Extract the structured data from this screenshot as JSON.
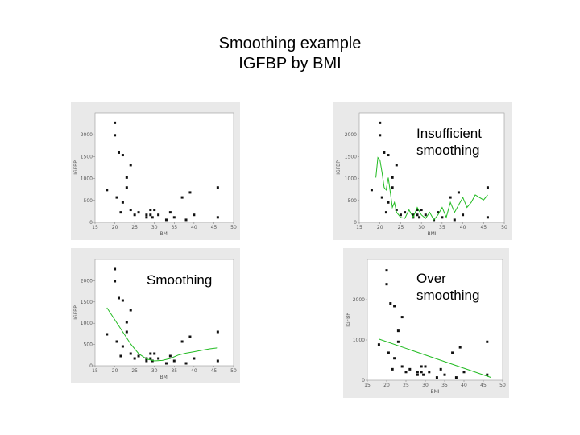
{
  "slide": {
    "title_line1": "Smoothing example",
    "title_line2": "IGFBP by BMI"
  },
  "captions": {
    "insufficient": "Insufficient smoothing",
    "smoothing": "Smoothing",
    "over": "Over smoothing"
  },
  "colors": {
    "points": "#111111",
    "smooth_line": "#22bb22",
    "frame": "#999999",
    "panel_bg": "#e9e9e9"
  },
  "points": {
    "x": [
      18,
      20,
      20,
      20.5,
      21,
      21.5,
      22,
      22,
      23,
      23,
      24,
      24,
      25,
      26,
      28,
      28,
      29,
      29,
      29.5,
      30,
      31,
      33,
      34,
      35,
      37,
      38,
      39,
      40,
      46,
      46
    ],
    "y": [
      650,
      2000,
      1750,
      500,
      1400,
      200,
      1350,
      400,
      700,
      900,
      250,
      1150,
      150,
      200,
      150,
      100,
      250,
      150,
      100,
      250,
      150,
      50,
      200,
      100,
      500,
      50,
      600,
      150,
      700,
      100
    ]
  },
  "chart_data": [
    {
      "type": "scatter",
      "title": "",
      "xlabel": "BMI",
      "ylabel": "IGFBP",
      "xlim": [
        15,
        50
      ],
      "ylim": [
        0,
        2200
      ],
      "x_ticks": [
        "15",
        "20",
        "25",
        "30",
        "35",
        "40",
        "45",
        "50"
      ],
      "y_ticks": [
        "0",
        "500",
        "1000",
        "1500",
        "2000"
      ],
      "series": []
    },
    {
      "type": "scatter",
      "title": "Insufficient smoothing",
      "xlabel": "BMI",
      "ylabel": "IGFBP",
      "xlim": [
        15,
        50
      ],
      "ylim": [
        0,
        5200
      ],
      "x_ticks": [
        "15",
        "20",
        "25",
        "30",
        "35",
        "40",
        "45",
        "50"
      ],
      "y_ticks": [
        "0",
        "500",
        "1000",
        "1500",
        "2000"
      ],
      "series": [
        {
          "x": [
            19,
            19.5,
            20,
            20.5,
            21,
            21.5,
            22,
            22.5,
            23,
            23.5,
            24,
            25,
            26,
            27,
            28,
            29,
            30,
            31,
            32,
            33,
            34,
            35,
            36,
            37,
            38,
            39,
            40,
            41,
            42,
            43,
            44,
            45,
            46
          ],
          "y": [
            900,
            1300,
            1250,
            1000,
            700,
            650,
            900,
            600,
            300,
            400,
            200,
            100,
            80,
            250,
            100,
            300,
            150,
            80,
            200,
            50,
            150,
            300,
            100,
            400,
            200,
            350,
            500,
            300,
            400,
            550,
            500,
            450,
            550
          ]
        }
      ]
    },
    {
      "type": "scatter",
      "title": "Smoothing",
      "xlabel": "BMI",
      "ylabel": "IGFBP",
      "xlim": [
        15,
        50
      ],
      "ylim": [
        0,
        2200
      ],
      "x_ticks": [
        "15",
        "20",
        "25",
        "30",
        "35",
        "40",
        "45",
        "50"
      ],
      "y_ticks": [
        "0",
        "500",
        "1000",
        "1500",
        "2000"
      ],
      "series": [
        {
          "x": [
            18,
            20,
            22,
            24,
            26,
            28,
            30,
            32,
            34,
            36,
            38,
            40,
            42,
            44,
            46
          ],
          "y": [
            1200,
            950,
            700,
            450,
            250,
            140,
            100,
            110,
            150,
            220,
            260,
            290,
            320,
            350,
            370
          ]
        }
      ]
    },
    {
      "type": "scatter",
      "title": "Over smoothing",
      "xlabel": "BMI",
      "ylabel": "IGFBP",
      "xlim": [
        15,
        50
      ],
      "ylim": [
        0,
        2200
      ],
      "x_ticks": [
        "15",
        "20",
        "25",
        "30",
        "35",
        "40",
        "45",
        "50"
      ],
      "y_ticks": [
        "0",
        "1000",
        "2000"
      ],
      "series": [
        {
          "x": [
            18,
            47
          ],
          "y": [
            750,
            50
          ]
        }
      ]
    }
  ]
}
